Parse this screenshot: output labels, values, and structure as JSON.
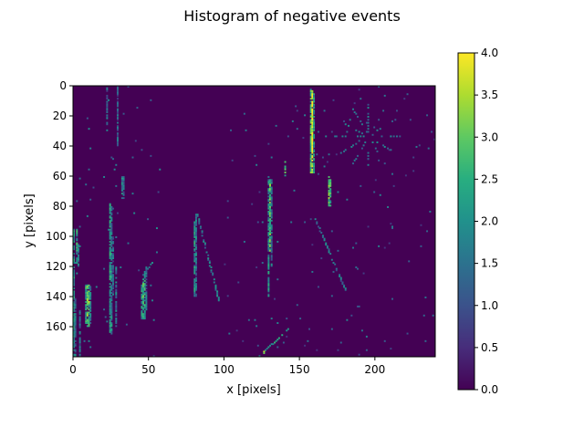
{
  "chart_data": {
    "type": "heatmap",
    "title": "Histogram of negative events",
    "xlabel": "x [pixels]",
    "ylabel": "y [pixels]",
    "xlim": [
      0,
      240
    ],
    "ylim": [
      180,
      0
    ],
    "x_ticks": [
      0,
      50,
      100,
      150,
      200
    ],
    "y_ticks": [
      0,
      20,
      40,
      60,
      80,
      100,
      120,
      140,
      160
    ],
    "colorbar": {
      "min": 0.0,
      "max": 4.0,
      "ticks": [
        "0.0",
        "0.5",
        "1.0",
        "1.5",
        "2.0",
        "2.5",
        "3.0",
        "3.5",
        "4.0"
      ],
      "colormap": "viridis"
    },
    "background_value": 0,
    "features": [
      {
        "kind": "vline",
        "x": 0,
        "y": [
          95,
          180
        ],
        "value": 2.0
      },
      {
        "kind": "vline",
        "x": 1,
        "y": [
          140,
          180
        ],
        "value": 1.5
      },
      {
        "kind": "vline",
        "x": 2,
        "y": [
          95,
          118
        ],
        "value": 2.3
      },
      {
        "kind": "vline",
        "x": 3,
        "y": [
          105,
          120
        ],
        "value": 1.8
      },
      {
        "kind": "vline",
        "x": 4,
        "y": [
          150,
          180
        ],
        "value": 1.4
      },
      {
        "kind": "vline",
        "x": 8,
        "y": [
          132,
          160
        ],
        "value": 2.3
      },
      {
        "kind": "vline",
        "x": 9,
        "y": [
          132,
          160
        ],
        "value": 3.0
      },
      {
        "kind": "vline",
        "x": 10,
        "y": [
          132,
          160
        ],
        "value": 2.6
      },
      {
        "kind": "vline",
        "x": 11,
        "y": [
          133,
          158
        ],
        "value": 1.6
      },
      {
        "kind": "vline",
        "x": 22,
        "y": [
          0,
          30
        ],
        "value": 1.2
      },
      {
        "kind": "vline",
        "x": 24,
        "y": [
          78,
          165
        ],
        "value": 2.1
      },
      {
        "kind": "vline",
        "x": 25,
        "y": [
          80,
          165
        ],
        "value": 1.7
      },
      {
        "kind": "vline",
        "x": 26,
        "y": [
          100,
          140
        ],
        "value": 1.3
      },
      {
        "kind": "vline",
        "x": 29,
        "y": [
          0,
          40
        ],
        "value": 1.2
      },
      {
        "kind": "vline",
        "x": 32,
        "y": [
          60,
          75
        ],
        "value": 1.7
      },
      {
        "kind": "vline",
        "x": 33,
        "y": [
          60,
          75
        ],
        "value": 1.4
      },
      {
        "kind": "vline",
        "x": 28,
        "y": [
          120,
          160
        ],
        "value": 1.6
      },
      {
        "kind": "vline",
        "x": 45,
        "y": [
          132,
          155
        ],
        "value": 2.1
      },
      {
        "kind": "vline",
        "x": 46,
        "y": [
          126,
          155
        ],
        "value": 2.6
      },
      {
        "kind": "vline",
        "x": 47,
        "y": [
          123,
          155
        ],
        "value": 2.2
      },
      {
        "kind": "vline",
        "x": 48,
        "y": [
          120,
          150
        ],
        "value": 1.5
      },
      {
        "kind": "vline",
        "x": 80,
        "y": [
          90,
          140
        ],
        "value": 2.0
      },
      {
        "kind": "vline",
        "x": 81,
        "y": [
          85,
          140
        ],
        "value": 1.5
      },
      {
        "kind": "vline",
        "x": 129,
        "y": [
          60,
          140
        ],
        "value": 1.9
      },
      {
        "kind": "vline",
        "x": 130,
        "y": [
          62,
          110
        ],
        "value": 2.8
      },
      {
        "kind": "vline",
        "x": 131,
        "y": [
          62,
          120
        ],
        "value": 1.5
      },
      {
        "kind": "vline",
        "x": 140,
        "y": [
          50,
          60
        ],
        "value": 2.9
      },
      {
        "kind": "vline",
        "x": 157,
        "y": [
          2,
          58
        ],
        "value": 2.7
      },
      {
        "kind": "vline",
        "x": 158,
        "y": [
          2,
          58
        ],
        "value": 3.7
      },
      {
        "kind": "vline",
        "x": 159,
        "y": [
          5,
          58
        ],
        "value": 2.0
      },
      {
        "kind": "vline",
        "x": 169,
        "y": [
          60,
          80
        ],
        "value": 3.0
      },
      {
        "kind": "vline",
        "x": 170,
        "y": [
          62,
          80
        ],
        "value": 2.4
      },
      {
        "kind": "diag",
        "from": [
          82,
          85
        ],
        "to": [
          96,
          142
        ],
        "value": 1.6
      },
      {
        "kind": "diag",
        "from": [
          160,
          88
        ],
        "to": [
          180,
          135
        ],
        "value": 1.4
      },
      {
        "kind": "diag",
        "from": [
          122,
          180
        ],
        "to": [
          142,
          161
        ],
        "value": 2.1
      },
      {
        "kind": "diag",
        "from": [
          46,
          125
        ],
        "to": [
          52,
          117
        ],
        "value": 1.7
      },
      {
        "kind": "star",
        "center": [
          195,
          33
        ],
        "radius": 22,
        "rays": 12,
        "value": 1.5
      },
      {
        "kind": "spot",
        "x": 126,
        "y": 176,
        "value": 3.6
      },
      {
        "kind": "spot",
        "x": 158,
        "y": 22,
        "value": 4.0
      },
      {
        "kind": "spot",
        "x": 10,
        "y": 143,
        "value": 3.8
      },
      {
        "kind": "scatter_region",
        "x": [
          100,
          240
        ],
        "y": [
          0,
          180
        ],
        "count": 150,
        "value": 1.2
      },
      {
        "kind": "scatter_region",
        "x": [
          0,
          60
        ],
        "y": [
          0,
          180
        ],
        "count": 60,
        "value": 1.4
      }
    ]
  }
}
